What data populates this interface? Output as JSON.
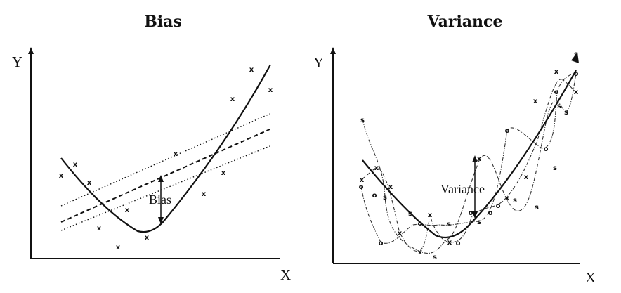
{
  "bias_panel": {
    "title": "Bias",
    "x_label": "X",
    "y_label": "Y",
    "annotation": "Bias",
    "point_marker": "x"
  },
  "variance_panel": {
    "title": "Variance",
    "x_label": "X",
    "y_label": "Y",
    "annotation": "Variance",
    "markers": [
      "x",
      "o",
      "s"
    ]
  }
}
